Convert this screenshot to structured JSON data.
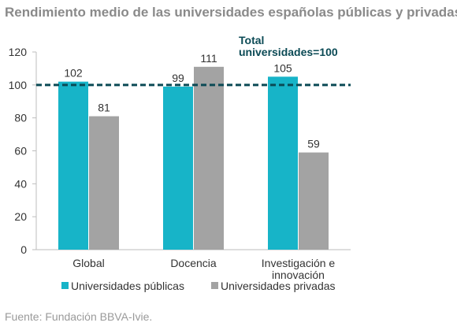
{
  "title": "Rendimiento medio de las universidades españolas públicas y privadas",
  "source": "Fuente: Fundación BBVA-Ivie.",
  "chart_data": {
    "type": "bar",
    "categories": [
      [
        "Global"
      ],
      [
        "Docencia"
      ],
      [
        "Investigación e",
        "innovación"
      ]
    ],
    "series": [
      {
        "name": "Universidades públicas",
        "values": [
          102,
          99,
          105
        ],
        "color": "#17b4c8"
      },
      {
        "name": "Universidades privadas",
        "values": [
          81,
          111,
          59
        ],
        "color": "#a3a3a3"
      }
    ],
    "ylim": [
      0,
      120
    ],
    "yticks": [
      0,
      20,
      40,
      60,
      80,
      100,
      120
    ],
    "reference_line": {
      "value": 100,
      "label": [
        "Total",
        "universidades=100"
      ],
      "color": "#0b4a55"
    },
    "legend_position": "bottom",
    "grid": false
  }
}
